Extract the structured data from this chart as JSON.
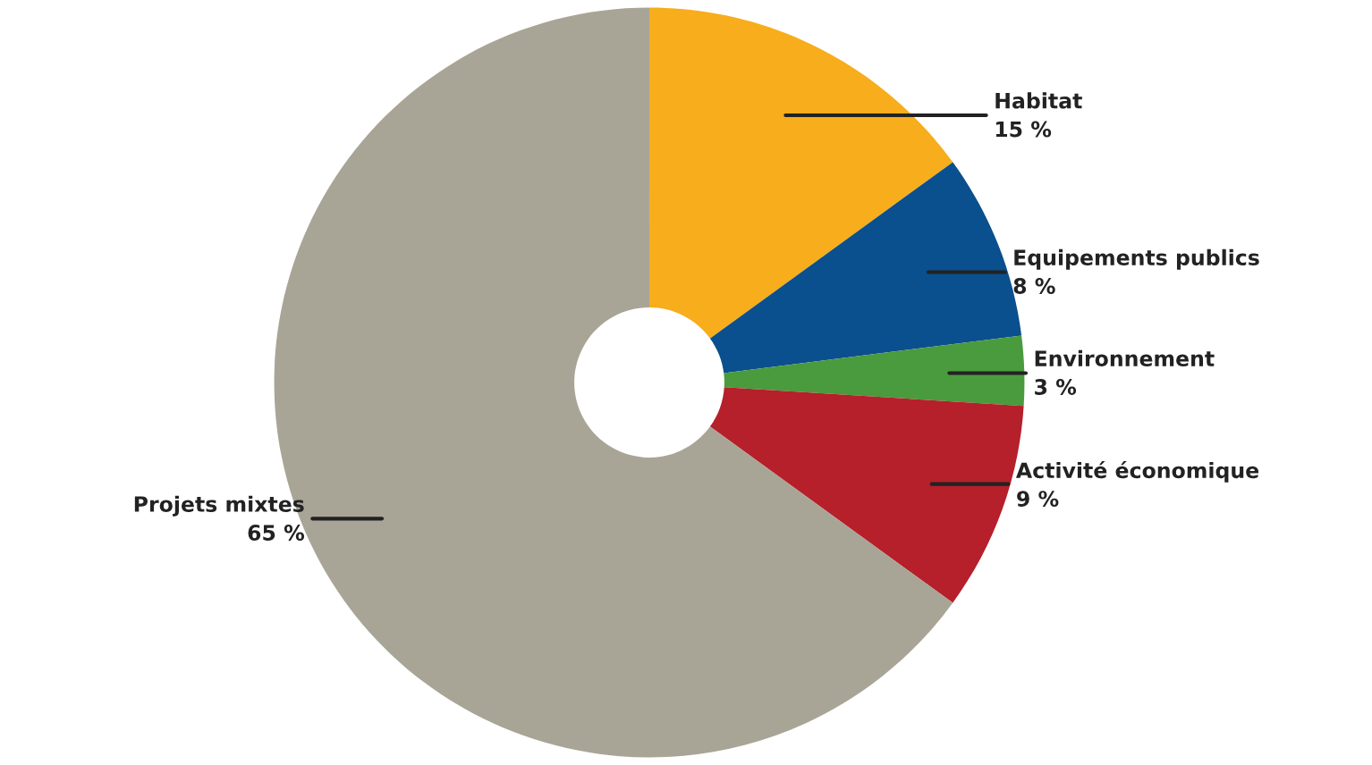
{
  "chart_data": {
    "type": "donut",
    "categories": [
      "Habitat",
      "Equipements publics",
      "Environnement",
      "Activité économique",
      "Projets mixtes"
    ],
    "values": [
      15,
      8,
      3,
      9,
      65
    ],
    "value_labels": [
      "15 %",
      "8 %",
      "3 %",
      "9 %",
      "65 %"
    ],
    "colors": [
      "#f7ad1c",
      "#0a4f8e",
      "#4a9a3e",
      "#b5202a",
      "#a9a596"
    ],
    "legend": false
  }
}
